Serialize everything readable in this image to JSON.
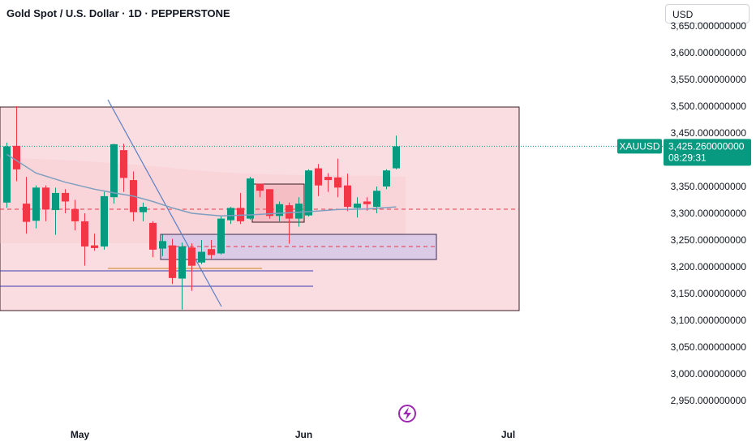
{
  "header": {
    "title": "Gold Spot / U.S. Dollar · 1D · PEPPERSTONE",
    "currency": "USD"
  },
  "colors": {
    "up": "#089981",
    "down": "#f23645",
    "zone_fill": "#f9d7dc",
    "ma_line": "#7e9fbf",
    "trend_line": "#5b7fc4",
    "price_tag": "#089981"
  },
  "price_tag": {
    "symbol": "XAUUSD",
    "price": "3,425.260000000",
    "countdown": "08:29:31",
    "value": 3425.26
  },
  "flash_icon": "lightning-icon",
  "chart_data": {
    "type": "candlestick",
    "ylim": [
      2925,
      3660
    ],
    "y_ticks": [
      {
        "value": 2950,
        "label": "2,950.000000000"
      },
      {
        "value": 3000,
        "label": "3,000.000000000"
      },
      {
        "value": 3050,
        "label": "3,050.000000000"
      },
      {
        "value": 3100,
        "label": "3,100.000000000"
      },
      {
        "value": 3150,
        "label": "3,150.000000000"
      },
      {
        "value": 3200,
        "label": "3,200.000000000"
      },
      {
        "value": 3250,
        "label": "3,250.000000000"
      },
      {
        "value": 3300,
        "label": "3,300.000000000"
      },
      {
        "value": 3350,
        "label": "3,350.000000000"
      },
      {
        "value": 3400,
        "label": "3,400.000000000"
      },
      {
        "value": 3450,
        "label": "3,450.000000000"
      },
      {
        "value": 3500,
        "label": "3,500.000000000"
      },
      {
        "value": 3550,
        "label": "3,550.000000000"
      },
      {
        "value": 3600,
        "label": "3,600.000000000"
      },
      {
        "value": 3650,
        "label": "3,650.000000000"
      }
    ],
    "x_ticks": [
      {
        "index": 7.5,
        "label": "May"
      },
      {
        "index": 30.5,
        "label": "Jun"
      },
      {
        "index": 51.5,
        "label": "Jul"
      }
    ],
    "candles": [
      {
        "o": 3320,
        "h": 3432,
        "l": 3310,
        "c": 3425
      },
      {
        "o": 3426,
        "h": 3500,
        "l": 3360,
        "c": 3382
      },
      {
        "o": 3318,
        "h": 3368,
        "l": 3262,
        "c": 3284
      },
      {
        "o": 3286,
        "h": 3352,
        "l": 3272,
        "c": 3348
      },
      {
        "o": 3348,
        "h": 3352,
        "l": 3285,
        "c": 3307
      },
      {
        "o": 3306,
        "h": 3348,
        "l": 3260,
        "c": 3338
      },
      {
        "o": 3338,
        "h": 3345,
        "l": 3300,
        "c": 3322
      },
      {
        "o": 3308,
        "h": 3325,
        "l": 3268,
        "c": 3285
      },
      {
        "o": 3285,
        "h": 3300,
        "l": 3202,
        "c": 3238
      },
      {
        "o": 3240,
        "h": 3262,
        "l": 3230,
        "c": 3235
      },
      {
        "o": 3238,
        "h": 3340,
        "l": 3232,
        "c": 3332
      },
      {
        "o": 3330,
        "h": 3430,
        "l": 3318,
        "c": 3429
      },
      {
        "o": 3418,
        "h": 3430,
        "l": 3340,
        "c": 3366
      },
      {
        "o": 3362,
        "h": 3378,
        "l": 3285,
        "c": 3302
      },
      {
        "o": 3302,
        "h": 3320,
        "l": 3285,
        "c": 3312
      },
      {
        "o": 3282,
        "h": 3285,
        "l": 3218,
        "c": 3232
      },
      {
        "o": 3234,
        "h": 3260,
        "l": 3220,
        "c": 3248
      },
      {
        "o": 3240,
        "h": 3252,
        "l": 3168,
        "c": 3179
      },
      {
        "o": 3178,
        "h": 3245,
        "l": 3120,
        "c": 3238
      },
      {
        "o": 3236,
        "h": 3244,
        "l": 3155,
        "c": 3202
      },
      {
        "o": 3208,
        "h": 3250,
        "l": 3205,
        "c": 3228
      },
      {
        "o": 3233,
        "h": 3250,
        "l": 3215,
        "c": 3222
      },
      {
        "o": 3225,
        "h": 3295,
        "l": 3223,
        "c": 3290
      },
      {
        "o": 3287,
        "h": 3312,
        "l": 3280,
        "c": 3310
      },
      {
        "o": 3310,
        "h": 3338,
        "l": 3280,
        "c": 3285
      },
      {
        "o": 3290,
        "h": 3368,
        "l": 3288,
        "c": 3365
      },
      {
        "o": 3355,
        "h": 3352,
        "l": 3330,
        "c": 3342
      },
      {
        "o": 3345,
        "h": 3345,
        "l": 3290,
        "c": 3295
      },
      {
        "o": 3295,
        "h": 3322,
        "l": 3285,
        "c": 3317
      },
      {
        "o": 3315,
        "h": 3320,
        "l": 3243,
        "c": 3290
      },
      {
        "o": 3290,
        "h": 3330,
        "l": 3275,
        "c": 3318
      },
      {
        "o": 3296,
        "h": 3382,
        "l": 3294,
        "c": 3380
      },
      {
        "o": 3384,
        "h": 3392,
        "l": 3332,
        "c": 3352
      },
      {
        "o": 3368,
        "h": 3375,
        "l": 3340,
        "c": 3362
      },
      {
        "o": 3367,
        "h": 3402,
        "l": 3330,
        "c": 3348
      },
      {
        "o": 3352,
        "h": 3374,
        "l": 3304,
        "c": 3312
      },
      {
        "o": 3310,
        "h": 3330,
        "l": 3292,
        "c": 3318
      },
      {
        "o": 3322,
        "h": 3330,
        "l": 3305,
        "c": 3317
      },
      {
        "o": 3312,
        "h": 3350,
        "l": 3300,
        "c": 3342
      },
      {
        "o": 3350,
        "h": 3382,
        "l": 3345,
        "c": 3380
      },
      {
        "o": 3384,
        "h": 3445,
        "l": 3382,
        "c": 3425
      }
    ],
    "moving_average": [
      {
        "i": 0,
        "v": 3410
      },
      {
        "i": 3,
        "v": 3375
      },
      {
        "i": 6,
        "v": 3358
      },
      {
        "i": 9,
        "v": 3345
      },
      {
        "i": 11,
        "v": 3338
      },
      {
        "i": 13,
        "v": 3332
      },
      {
        "i": 15,
        "v": 3322
      },
      {
        "i": 17,
        "v": 3310
      },
      {
        "i": 19,
        "v": 3300
      },
      {
        "i": 22,
        "v": 3295
      },
      {
        "i": 25,
        "v": 3297
      },
      {
        "i": 28,
        "v": 3300
      },
      {
        "i": 31,
        "v": 3303
      },
      {
        "i": 34,
        "v": 3307
      },
      {
        "i": 37,
        "v": 3308
      },
      {
        "i": 40,
        "v": 3312
      }
    ]
  }
}
